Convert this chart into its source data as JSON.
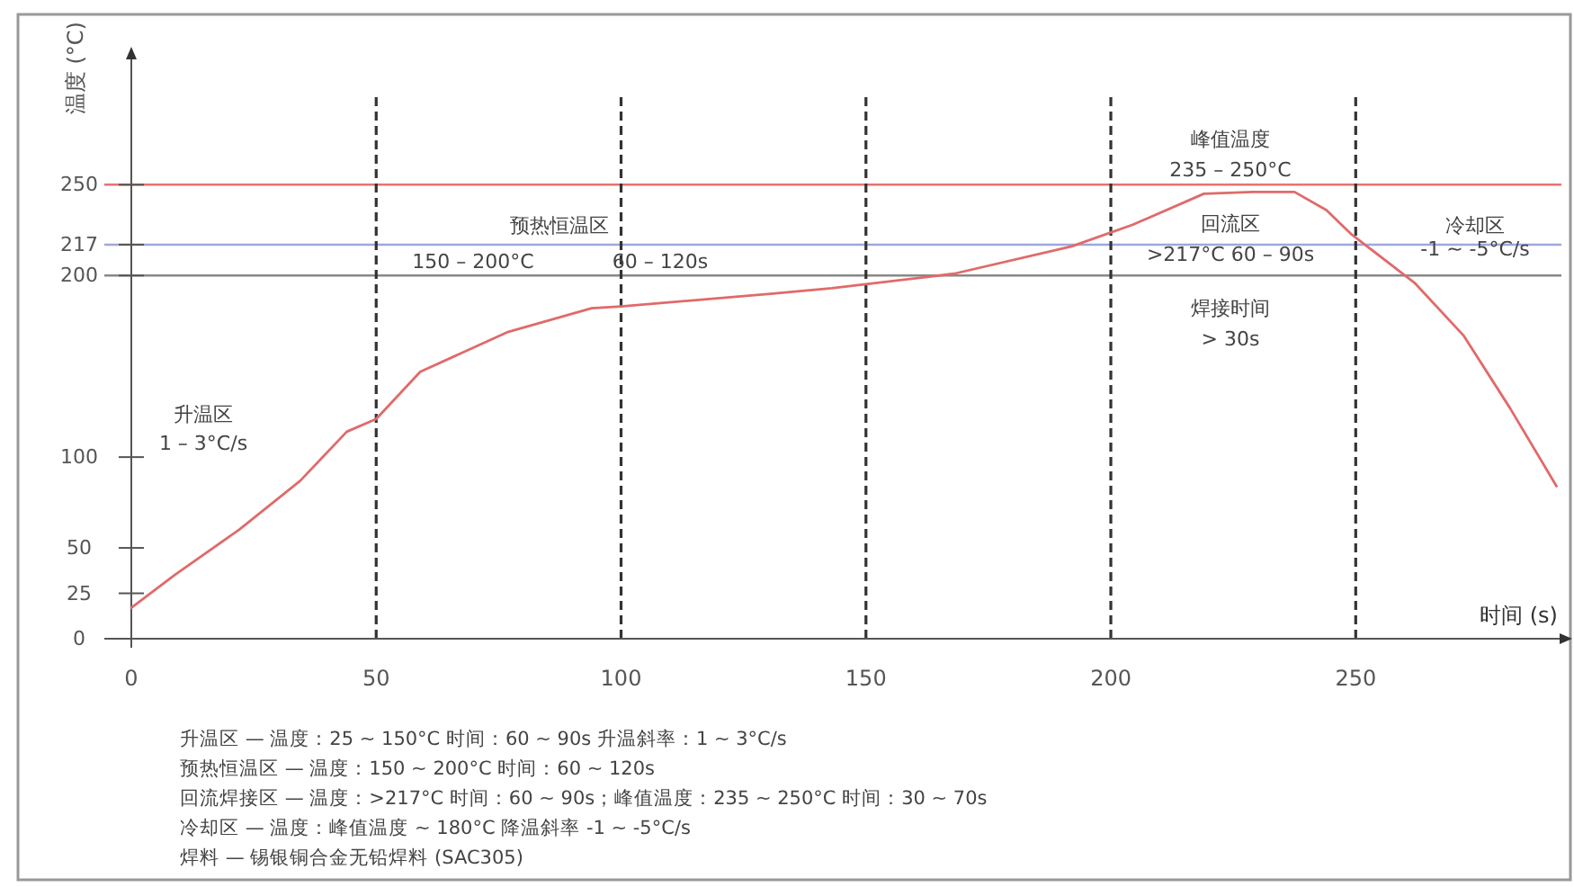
{
  "chart_data": {
    "type": "line",
    "xlabel": "时间 (s)",
    "ylabel": "温度 (°C)",
    "x": [
      0,
      8.8,
      22,
      34.5,
      44,
      50,
      59,
      77,
      94,
      100,
      131,
      143,
      168,
      192,
      204.5,
      219,
      229,
      237.5,
      244,
      249,
      262,
      272,
      281.5,
      291
    ],
    "values": [
      17,
      35,
      60,
      87,
      114,
      121,
      147,
      169,
      182,
      183,
      190,
      193,
      201,
      216,
      228,
      245,
      246,
      246,
      236,
      223,
      196,
      167,
      127,
      84
    ],
    "color": "#e06a6a",
    "marker": "none",
    "line_style": "solid",
    "grid": false,
    "xlim": [
      0,
      292
    ],
    "ylim": [
      0,
      320
    ],
    "xticks": [
      0,
      50,
      100,
      150,
      200,
      250
    ],
    "yticks": [
      0,
      25,
      50,
      100,
      200,
      217,
      250
    ],
    "ref_lines": [
      {
        "axis": "y",
        "value": 250,
        "color": "#e57373",
        "line_style": "solid"
      },
      {
        "axis": "y",
        "value": 217,
        "color": "#9fa8da",
        "line_style": "solid"
      },
      {
        "axis": "y",
        "value": 200,
        "color": "#888888",
        "line_style": "solid"
      },
      {
        "axis": "x",
        "value": 50,
        "color": "#333333",
        "line_style": "dashed"
      },
      {
        "axis": "x",
        "value": 100,
        "color": "#333333",
        "line_style": "dashed"
      },
      {
        "axis": "x",
        "value": 150,
        "color": "#333333",
        "line_style": "dashed"
      },
      {
        "axis": "x",
        "value": 200,
        "color": "#333333",
        "line_style": "dashed"
      },
      {
        "axis": "x",
        "value": 250,
        "color": "#333333",
        "line_style": "dashed"
      }
    ],
    "annotations": [
      "升温区",
      "1 – 3°C/s",
      "预热恒温区",
      "150 – 200°C",
      "60 – 120s",
      "峰值温度",
      "235 – 250°C",
      "回流区",
      ">217°C  60 – 90s",
      "焊接时间",
      "> 30s",
      "冷却区",
      "-1 ~ -5°C/s",
      "升温区 — 温度：25 ~ 150°C  时间：60 ~ 90s  升温斜率：1 ~ 3°C/s",
      "预热恒温区 — 温度：150 ~ 200°C  时间：60 ~ 120s",
      "回流焊接区 — 温度：>217°C  时间：60 ~ 90s；峰值温度：235 ~ 250°C  时间：30 ~ 70s",
      "冷却区 — 温度：峰值温度 ~ 180°C  降温斜率 -1 ~ -5°C/s",
      "焊料 — 锡银铜合金无铅焊料 (SAC305)"
    ]
  }
}
